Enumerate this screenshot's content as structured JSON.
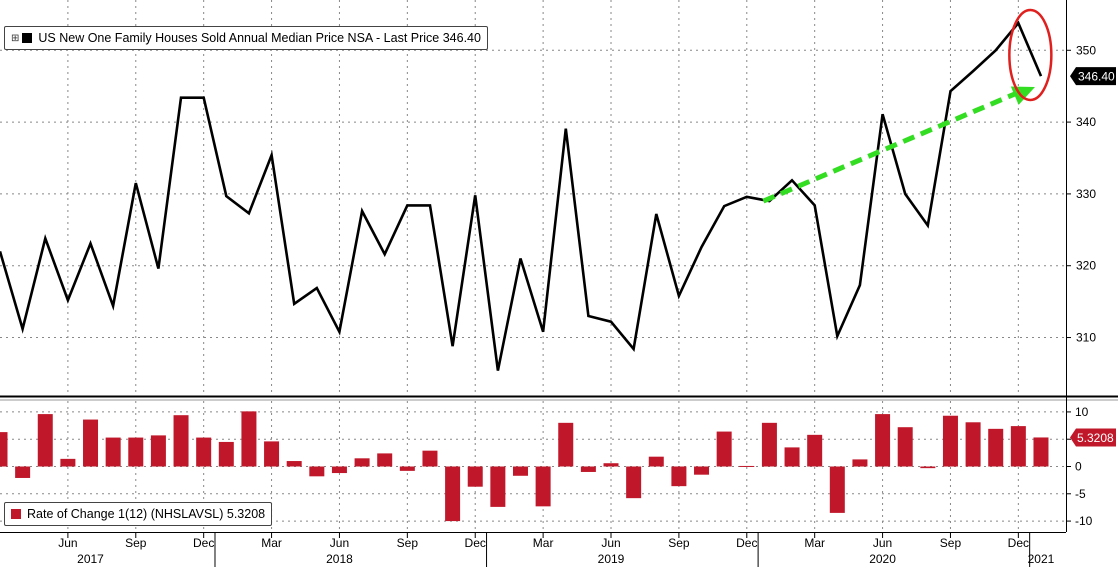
{
  "colors": {
    "line": "#000000",
    "bars": "#c0182a",
    "arrow": "#33dd22",
    "circle": "#e0201e",
    "grid": "#888888"
  },
  "legend_top": {
    "label": "US New One Family Houses Sold Annual Median Price NSA - Last Price 346.40"
  },
  "legend_bottom": {
    "label": "Rate of Change 1(12)  (NHSLAVSL)  5.3208"
  },
  "chart_data": [
    {
      "type": "line",
      "series": [
        {
          "name": "US New One Family Houses Sold Annual Median Price NSA",
          "x": [
            "2017-03",
            "2017-04",
            "2017-05",
            "2017-06",
            "2017-07",
            "2017-08",
            "2017-09",
            "2017-10",
            "2017-11",
            "2017-12",
            "2018-01",
            "2018-02",
            "2018-03",
            "2018-04",
            "2018-05",
            "2018-06",
            "2018-07",
            "2018-08",
            "2018-09",
            "2018-10",
            "2018-11",
            "2018-12",
            "2019-01",
            "2019-02",
            "2019-03",
            "2019-04",
            "2019-05",
            "2019-06",
            "2019-07",
            "2019-08",
            "2019-09",
            "2019-10",
            "2019-11",
            "2019-12",
            "2020-01",
            "2020-02",
            "2020-03",
            "2020-04",
            "2020-05",
            "2020-06",
            "2020-07",
            "2020-08",
            "2020-09",
            "2020-10",
            "2020-11",
            "2020-12",
            "2021-01"
          ],
          "values": [
            322.0,
            311.2,
            323.8,
            315.2,
            323.1,
            314.4,
            331.5,
            319.6,
            343.4,
            343.4,
            329.7,
            327.3,
            335.4,
            314.7,
            316.9,
            310.8,
            327.6,
            321.6,
            328.4,
            328.4,
            308.8,
            329.8,
            305.4,
            321.0,
            310.8,
            339.1,
            313.0,
            312.2,
            308.4,
            327.2,
            315.8,
            322.6,
            328.3,
            329.6,
            329.0,
            331.9,
            328.4,
            310.2,
            317.3,
            341.1,
            330.0,
            325.6,
            344.3,
            347.1,
            350.0,
            353.8,
            346.4
          ]
        }
      ],
      "last_value_label": "346.40",
      "yticks": [
        "310",
        "320",
        "330",
        "340",
        "350"
      ],
      "ylim": [
        302,
        357
      ],
      "grid": true
    },
    {
      "type": "bar",
      "series": [
        {
          "name": "Rate of Change 1(12) (NHSLAVSL)",
          "x": [
            "2017-03",
            "2017-04",
            "2017-05",
            "2017-06",
            "2017-07",
            "2017-08",
            "2017-09",
            "2017-10",
            "2017-11",
            "2017-12",
            "2018-01",
            "2018-02",
            "2018-03",
            "2018-04",
            "2018-05",
            "2018-06",
            "2018-07",
            "2018-08",
            "2018-09",
            "2018-10",
            "2018-11",
            "2018-12",
            "2019-01",
            "2019-02",
            "2019-03",
            "2019-04",
            "2019-05",
            "2019-06",
            "2019-07",
            "2019-08",
            "2019-09",
            "2019-10",
            "2019-11",
            "2019-12",
            "2020-01",
            "2020-02",
            "2020-03",
            "2020-04",
            "2020-05",
            "2020-06",
            "2020-07",
            "2020-08",
            "2020-09",
            "2020-10",
            "2020-11",
            "2020-12",
            "2021-01"
          ],
          "values": [
            6.3,
            -2.1,
            9.6,
            1.4,
            8.6,
            5.3,
            5.3,
            5.7,
            9.4,
            5.3,
            4.5,
            10.1,
            4.6,
            1.0,
            -1.8,
            -1.2,
            1.5,
            2.4,
            -0.8,
            2.9,
            -10.0,
            -3.7,
            -7.4,
            -1.7,
            -7.3,
            8.0,
            -1.0,
            0.6,
            -5.8,
            1.8,
            -3.6,
            -1.5,
            6.4,
            0.1,
            8.0,
            3.5,
            5.8,
            -8.5,
            1.3,
            9.6,
            7.2,
            -0.3,
            9.3,
            8.1,
            6.9,
            7.4,
            5.3208
          ]
        }
      ],
      "last_value_label": "5.3208",
      "yticks": [
        "10",
        "5",
        "0",
        "-5",
        "-10"
      ],
      "ylim": [
        -12,
        12
      ],
      "grid": true
    }
  ],
  "x_axis": {
    "month_ticks": [
      {
        "date": "2017-06",
        "label": "Jun"
      },
      {
        "date": "2017-09",
        "label": "Sep"
      },
      {
        "date": "2017-12",
        "label": "Dec"
      },
      {
        "date": "2018-03",
        "label": "Mar"
      },
      {
        "date": "2018-06",
        "label": "Jun"
      },
      {
        "date": "2018-09",
        "label": "Sep"
      },
      {
        "date": "2018-12",
        "label": "Dec"
      },
      {
        "date": "2019-03",
        "label": "Mar"
      },
      {
        "date": "2019-06",
        "label": "Jun"
      },
      {
        "date": "2019-09",
        "label": "Sep"
      },
      {
        "date": "2019-12",
        "label": "Dec"
      },
      {
        "date": "2020-03",
        "label": "Mar"
      },
      {
        "date": "2020-06",
        "label": "Jun"
      },
      {
        "date": "2020-09",
        "label": "Sep"
      },
      {
        "date": "2020-12",
        "label": "Dec"
      }
    ],
    "year_labels": [
      {
        "date": "2017-07",
        "label": "2017"
      },
      {
        "date": "2018-06",
        "label": "2018"
      },
      {
        "date": "2019-06",
        "label": "2019"
      },
      {
        "date": "2020-06",
        "label": "2020"
      },
      {
        "date": "2021-01",
        "label": "2021"
      }
    ]
  }
}
